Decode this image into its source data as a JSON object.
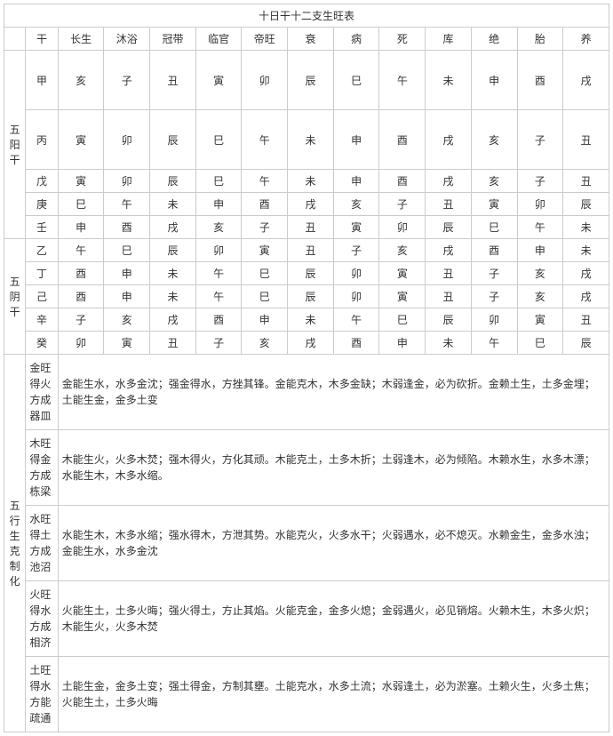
{
  "title": "十日干十二支生旺表",
  "headers": [
    "干",
    "长生",
    "沐浴",
    "冠带",
    "临官",
    "帝旺",
    "衰",
    "病",
    "死",
    "库",
    "绝",
    "胎",
    "养"
  ],
  "groups": [
    {
      "name": "五阳干",
      "rows": [
        {
          "gan": "甲",
          "zhi": [
            "亥",
            "子",
            "丑",
            "寅",
            "卯",
            "辰",
            "巳",
            "午",
            "未",
            "申",
            "酉",
            "戌"
          ],
          "tall": true
        },
        {
          "gan": "丙",
          "zhi": [
            "寅",
            "卯",
            "辰",
            "巳",
            "午",
            "未",
            "申",
            "酉",
            "戌",
            "亥",
            "子",
            "丑"
          ],
          "tall": true
        },
        {
          "gan": "戊",
          "zhi": [
            "寅",
            "卯",
            "辰",
            "巳",
            "午",
            "未",
            "申",
            "酉",
            "戌",
            "亥",
            "子",
            "丑"
          ]
        },
        {
          "gan": "庚",
          "zhi": [
            "巳",
            "午",
            "未",
            "申",
            "酉",
            "戌",
            "亥",
            "子",
            "丑",
            "寅",
            "卯",
            "辰"
          ]
        },
        {
          "gan": "壬",
          "zhi": [
            "申",
            "酉",
            "戌",
            "亥",
            "子",
            "丑",
            "寅",
            "卯",
            "辰",
            "巳",
            "午",
            "未"
          ]
        }
      ]
    },
    {
      "name": "五阴干",
      "rows": [
        {
          "gan": "乙",
          "zhi": [
            "午",
            "巳",
            "辰",
            "卯",
            "寅",
            "丑",
            "子",
            "亥",
            "戌",
            "酉",
            "申",
            "未"
          ]
        },
        {
          "gan": "丁",
          "zhi": [
            "酉",
            "申",
            "未",
            "午",
            "巳",
            "辰",
            "卯",
            "寅",
            "丑",
            "子",
            "亥",
            "戌"
          ]
        },
        {
          "gan": "己",
          "zhi": [
            "酉",
            "申",
            "未",
            "午",
            "巳",
            "辰",
            "卯",
            "寅",
            "丑",
            "子",
            "亥",
            "戌"
          ]
        },
        {
          "gan": "辛",
          "zhi": [
            "子",
            "亥",
            "戌",
            "酉",
            "申",
            "未",
            "午",
            "巳",
            "辰",
            "卯",
            "寅",
            "丑"
          ]
        },
        {
          "gan": "癸",
          "zhi": [
            "卯",
            "寅",
            "丑",
            "子",
            "亥",
            "戌",
            "酉",
            "申",
            "未",
            "午",
            "巳",
            "辰"
          ]
        }
      ]
    }
  ],
  "kezhi": {
    "name": "五行生克制化",
    "rows": [
      {
        "label": "金旺得火方成器皿",
        "text": "金能生水，水多金沈；强金得水，方挫其锋。金能克木，木多金缺；木弱逢金，必为砍折。金赖土生，土多金埋；土能生金，金多土变"
      },
      {
        "label": "木旺得金方成栋梁",
        "text": "木能生火，火多木焚；强木得火，方化其顽。木能克土，土多木折；土弱逢木，必为倾陷。木赖水生，水多木漂；水能生木，木多水缩。"
      },
      {
        "label": "水旺得土方成池沼",
        "text": "水能生木，木多水缩；强水得木，方泄其势。水能克火，火多水干；火弱遇水，必不熄灭。水赖金生，金多水浊；金能生水，水多金沈"
      },
      {
        "label": "火旺得水方成相济",
        "text": "火能生土，土多火晦；强火得土，方止其焰。火能克金，金多火熄；金弱遇火，必见销熔。火赖木生，木多火炽；木能生火，火多木焚"
      },
      {
        "label": "土旺得水方能疏通",
        "text": "土能生金，金多土变；强土得金，方制其壅。土能克水，水多土流；水弱逢土，必为淤塞。土赖火生，火多土焦；火能生土，土多火晦"
      }
    ]
  }
}
